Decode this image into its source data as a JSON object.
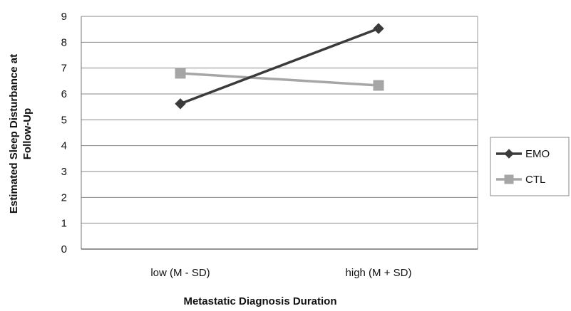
{
  "chart_data": {
    "type": "line",
    "categories": [
      "low (M - SD)",
      "high (M + SD)"
    ],
    "series": [
      {
        "name": "EMO",
        "values": [
          5.62,
          8.53
        ],
        "color": "#3b3b3b",
        "marker": "diamond"
      },
      {
        "name": "CTL",
        "values": [
          6.8,
          6.33
        ],
        "color": "#a6a6a6",
        "marker": "square"
      }
    ],
    "title": "",
    "xlabel": "Metastatic Diagnosis Duration",
    "ylabel_lines": [
      "Estimated Sleep Disturbance at",
      "Follow-Up"
    ],
    "ylim": [
      0,
      9
    ],
    "yticks": [
      "0",
      "1",
      "2",
      "3",
      "4",
      "5",
      "6",
      "7",
      "8",
      "9"
    ],
    "grid": true,
    "legend_position": "right"
  }
}
